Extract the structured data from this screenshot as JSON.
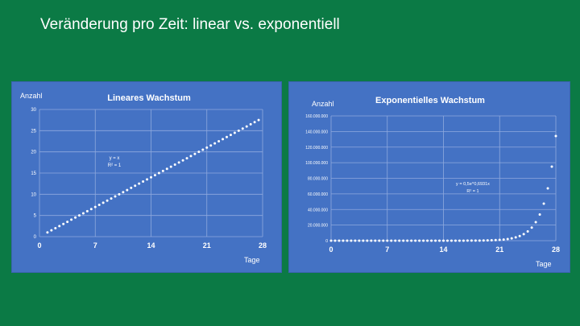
{
  "slide": {
    "title": "Veränderung pro Zeit: linear vs. exponentiell"
  },
  "colors": {
    "background": "#0b7a45",
    "panel": "#4472c4",
    "text": "#ffffff",
    "grid": "#8fa9de"
  },
  "chart_data": [
    {
      "type": "scatter",
      "title": "Lineares Wachstum",
      "xlabel": "Tage",
      "ylabel": "Anzahl",
      "xlim": [
        0,
        28
      ],
      "ylim": [
        0,
        30
      ],
      "x_ticks": [
        0,
        7,
        14,
        21,
        28
      ],
      "x_tick_labels": [
        "0",
        "7",
        "14",
        "21",
        "28"
      ],
      "y_ticks": [
        0,
        5,
        10,
        15,
        20,
        25,
        30
      ],
      "y_tick_labels": [
        "0",
        "5",
        "10",
        "15",
        "20",
        "25",
        "30"
      ],
      "grid": true,
      "legend": "none",
      "annotation": [
        "y = x",
        "R² = 1"
      ],
      "series": [
        {
          "x": [
            1,
            1.5,
            2,
            2.5,
            3,
            3.5,
            4,
            4.5,
            5,
            5.5,
            6,
            6.5,
            7,
            7.5,
            8,
            8.5,
            9,
            9.5,
            10,
            10.5,
            11,
            11.5,
            12,
            12.5,
            13,
            13.5,
            14,
            14.5,
            15,
            15.5,
            16,
            16.5,
            17,
            17.5,
            18,
            18.5,
            19,
            19.5,
            20,
            20.5,
            21,
            21.5,
            22,
            22.5,
            23,
            23.5,
            24,
            24.5,
            25,
            25.5,
            26,
            26.5,
            27,
            27.5
          ],
          "y": [
            1,
            1.5,
            2,
            2.5,
            3,
            3.5,
            4,
            4.5,
            5,
            5.5,
            6,
            6.5,
            7,
            7.5,
            8,
            8.5,
            9,
            9.5,
            10,
            10.5,
            11,
            11.5,
            12,
            12.5,
            13,
            13.5,
            14,
            14.5,
            15,
            15.5,
            16,
            16.5,
            17,
            17.5,
            18,
            18.5,
            19,
            19.5,
            20,
            20.5,
            21,
            21.5,
            22,
            22.5,
            23,
            23.5,
            24,
            24.5,
            25,
            25.5,
            26,
            26.5,
            27,
            27.5
          ]
        }
      ]
    },
    {
      "type": "scatter",
      "title": "Exponentielles Wachstum",
      "xlabel": "Tage",
      "ylabel": "Anzahl",
      "xlim": [
        0,
        28
      ],
      "ylim": [
        0,
        160000000
      ],
      "x_ticks": [
        0,
        7,
        14,
        21,
        28
      ],
      "x_tick_labels": [
        "0",
        "7",
        "14",
        "21",
        "28"
      ],
      "y_ticks": [
        0,
        20000000,
        40000000,
        60000000,
        80000000,
        100000000,
        120000000,
        140000000,
        160000000
      ],
      "y_tick_labels": [
        "0",
        "20.000.000",
        "40.000.000",
        "60.000.000",
        "80.000.000",
        "100.000.000",
        "120.000.000",
        "140.000.000",
        "160.000.000"
      ],
      "grid": true,
      "legend": "none",
      "annotation": [
        "y = 0,5e^0,6931x",
        "R² = 1"
      ],
      "series": [
        {
          "x": [
            0,
            0.5,
            1,
            1.5,
            2,
            2.5,
            3,
            3.5,
            4,
            4.5,
            5,
            5.5,
            6,
            6.5,
            7,
            7.5,
            8,
            8.5,
            9,
            9.5,
            10,
            10.5,
            11,
            11.5,
            12,
            12.5,
            13,
            13.5,
            14,
            14.5,
            15,
            15.5,
            16,
            16.5,
            17,
            17.5,
            18,
            18.5,
            19,
            19.5,
            20,
            20.5,
            21,
            21.5,
            22,
            22.5,
            23,
            23.5,
            24,
            24.5,
            25,
            25.5,
            26,
            26.5,
            27,
            27.5,
            28
          ],
          "y": [
            0.5,
            0.71,
            1,
            1.41,
            2,
            2.83,
            4,
            5.66,
            8,
            11.3,
            16,
            22.6,
            32,
            45.3,
            64,
            90.5,
            128,
            181,
            256,
            362,
            512,
            724,
            1024,
            1448,
            2048,
            2896,
            4096,
            5793,
            8192,
            11585,
            16384,
            23170,
            32768,
            46341,
            65536,
            92682,
            131072,
            185364,
            262144,
            370728,
            524288,
            741455,
            1048576,
            1482910,
            2097152,
            2965821,
            4194304,
            5931642,
            8388608,
            11863283,
            16777216,
            23726566,
            33554432,
            47453133,
            67108864,
            94906266,
            134217728
          ]
        }
      ]
    }
  ]
}
